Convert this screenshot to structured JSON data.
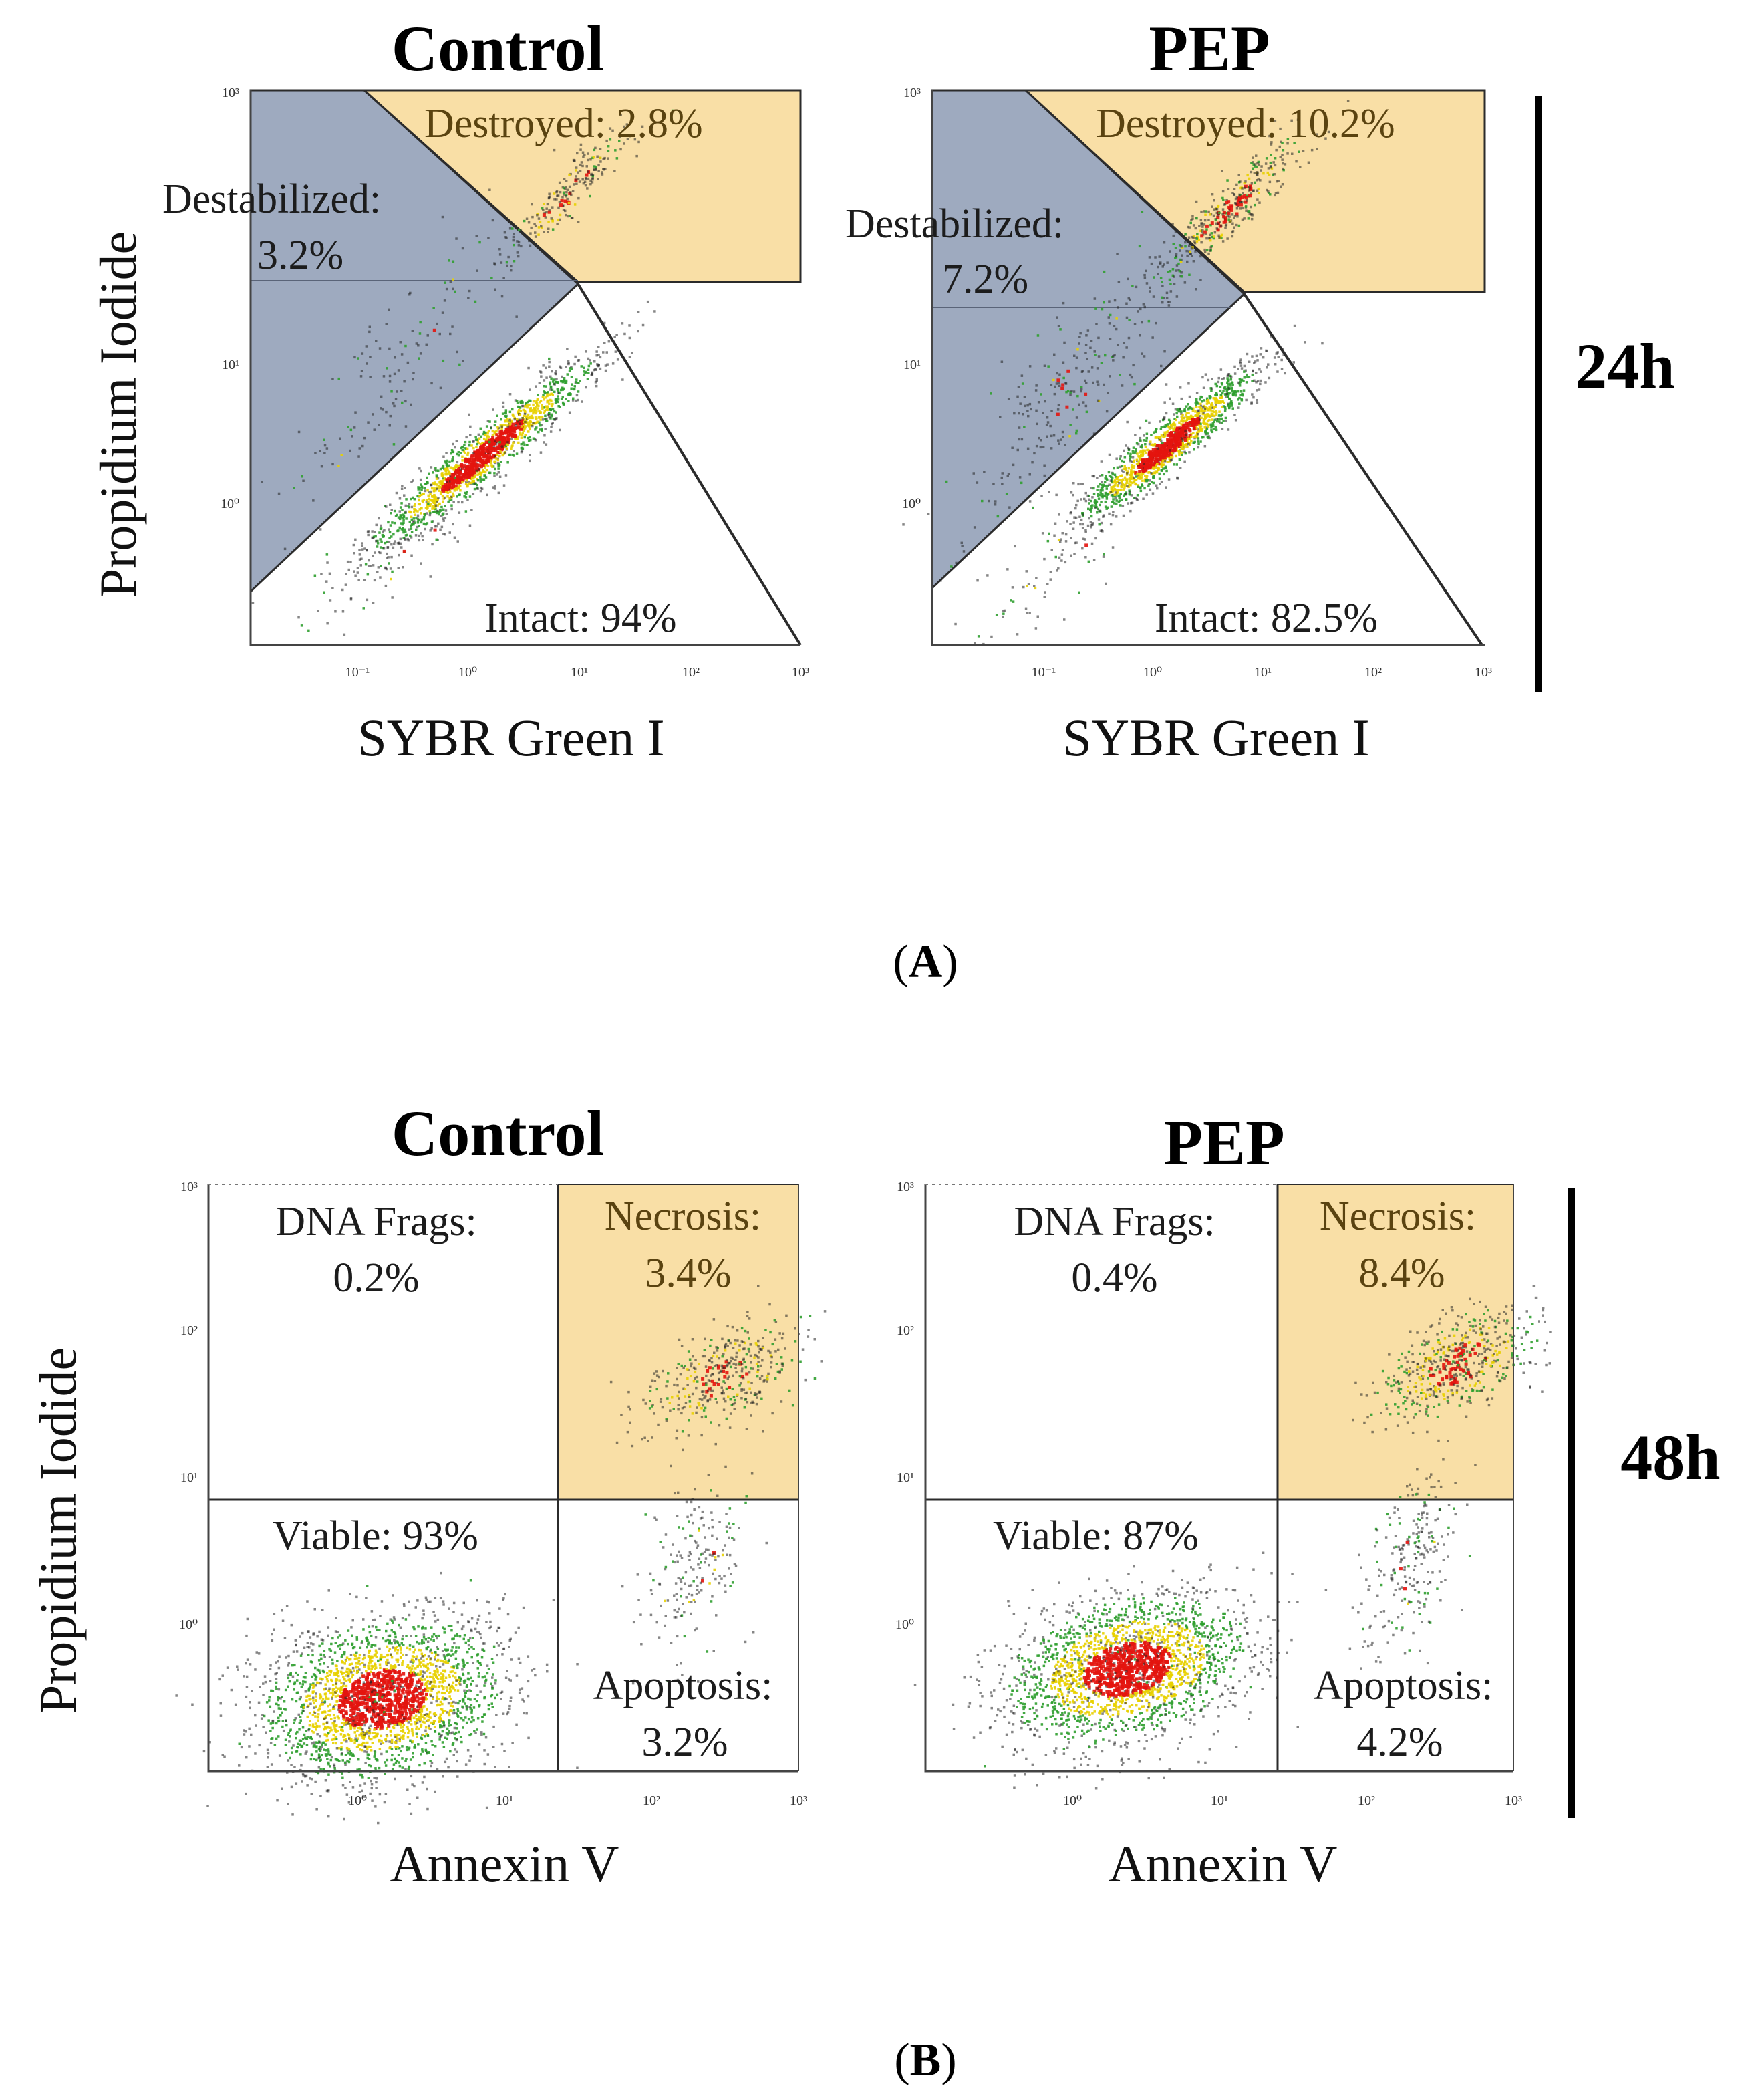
{
  "figure": {
    "panel_a_label": {
      "open": "(",
      "letter": "A",
      "close": ")"
    },
    "panel_b_label": {
      "open": "(",
      "letter": "B",
      "close": ")"
    },
    "time_a": "24h",
    "time_b": "48h"
  },
  "colors": {
    "blue_gate": "#9eaabf",
    "yellow_gate": "#f9dfa6",
    "gate_line": "#2b2b2b",
    "bar": "#000000",
    "density_low": "#222222",
    "density_mid": "#2f9e2f",
    "density_high": "#e8d000",
    "density_top": "#e3140e"
  },
  "chart_data": [
    {
      "type": "scatter",
      "panel": "A",
      "title": "Control",
      "xlabel": "SYBR Green I",
      "ylabel": "Propidium Iodide",
      "x_ticks": [
        "10⁻¹",
        "10⁰",
        "10¹",
        "10²",
        "10³"
      ],
      "y_ticks": [
        "10⁰",
        "10¹",
        "10³"
      ],
      "xlim_log10": [
        -2,
        3
      ],
      "ylim_log10": [
        -1,
        3
      ],
      "gates": [
        {
          "name": "Destroyed",
          "label": "Destroyed: 2.8%",
          "value_percent": 2.8
        },
        {
          "name": "Destabilized",
          "label_line1": "Destabilized:",
          "label_line2": "3.2%",
          "value_percent": 3.2
        },
        {
          "name": "Intact",
          "label": "Intact: 94%",
          "value_percent": 94
        }
      ]
    },
    {
      "type": "scatter",
      "panel": "A",
      "title": "PEP",
      "xlabel": "SYBR Green I",
      "ylabel": "Propidium Iodide",
      "x_ticks": [
        "10⁻¹",
        "10⁰",
        "10¹",
        "10²",
        "10³"
      ],
      "y_ticks": [
        "10⁰",
        "10¹",
        "10³"
      ],
      "xlim_log10": [
        -2,
        3
      ],
      "ylim_log10": [
        -1,
        3
      ],
      "gates": [
        {
          "name": "Destroyed",
          "label": "Destroyed: 10.2%",
          "value_percent": 10.2
        },
        {
          "name": "Destabilized",
          "label_line1": "Destabilized:",
          "label_line2": "7.2%",
          "value_percent": 7.2
        },
        {
          "name": "Intact",
          "label": "Intact: 82.5%",
          "value_percent": 82.5
        }
      ]
    },
    {
      "type": "scatter",
      "panel": "B",
      "title": "Control",
      "xlabel": "Annexin V",
      "ylabel": "Propidium Iodide",
      "x_ticks": [
        "10⁰",
        "10¹",
        "10²",
        "10³"
      ],
      "y_ticks": [
        "10⁰",
        "10¹",
        "10²",
        "10³"
      ],
      "xlim_log10": [
        -1,
        3
      ],
      "ylim_log10": [
        -1,
        3
      ],
      "quadrants": [
        {
          "name": "DNA Frags",
          "label_line1": "DNA Frags:",
          "label_line2": "0.2%",
          "value_percent": 0.2
        },
        {
          "name": "Necrosis",
          "label_line1": "Necrosis:",
          "label_line2": "3.4%",
          "value_percent": 3.4
        },
        {
          "name": "Viable",
          "label": "Viable: 93%",
          "value_percent": 93
        },
        {
          "name": "Apoptosis",
          "label_line1": "Apoptosis:",
          "label_line2": "3.2%",
          "value_percent": 3.2
        }
      ]
    },
    {
      "type": "scatter",
      "panel": "B",
      "title": "PEP",
      "xlabel": "Annexin V",
      "ylabel": "Propidium Iodide",
      "x_ticks": [
        "10⁰",
        "10¹",
        "10²",
        "10³"
      ],
      "y_ticks": [
        "10⁰",
        "10¹",
        "10²",
        "10³"
      ],
      "xlim_log10": [
        -1,
        3
      ],
      "ylim_log10": [
        -1,
        3
      ],
      "quadrants": [
        {
          "name": "DNA Frags",
          "label_line1": "DNA Frags:",
          "label_line2": "0.4%",
          "value_percent": 0.4
        },
        {
          "name": "Necrosis",
          "label_line1": "Necrosis:",
          "label_line2": "8.4%",
          "value_percent": 8.4
        },
        {
          "name": "Viable",
          "label": "Viable: 87%",
          "value_percent": 87
        },
        {
          "name": "Apoptosis",
          "label_line1": "Apoptosis:",
          "label_line2": "4.2%",
          "value_percent": 4.2
        }
      ]
    }
  ]
}
